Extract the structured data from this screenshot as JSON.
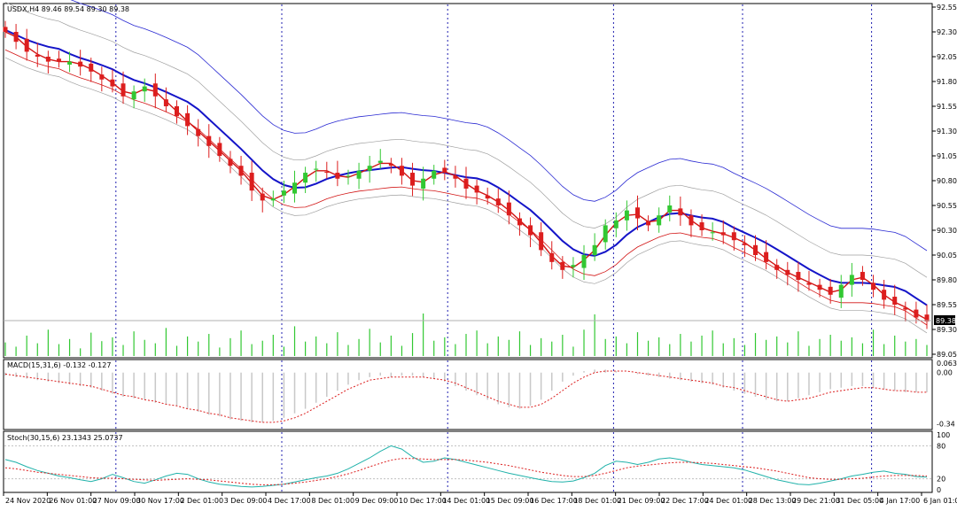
{
  "chart_data": [
    {
      "type": "candlestick",
      "header": "USDX,H4  89.46 89.54 89.30 89.38",
      "last_price": "89.38",
      "price_ticks": [
        "92.55",
        "92.30",
        "92.05",
        "91.80",
        "91.55",
        "91.30",
        "91.05",
        "90.80",
        "90.55",
        "90.30",
        "90.05",
        "89.80",
        "89.55",
        "89.30",
        "89.05"
      ],
      "ylim": [
        89.05,
        92.55
      ],
      "x_labels": [
        "24 Nov 2020",
        "26 Nov 01:00",
        "27 Nov 09:00",
        "30 Nov 17:00",
        "2 Dec 01:00",
        "3 Dec 09:00",
        "4 Dec 17:00",
        "8 Dec 01:00",
        "9 Dec 09:00",
        "10 Dec 17:00",
        "14 Dec 01:00",
        "15 Dec 09:00",
        "16 Dec 17:00",
        "18 Dec 01:00",
        "21 Dec 09:00",
        "22 Dec 17:00",
        "24 Dec 01:00",
        "28 Dec 13:00",
        "29 Dec 21:00",
        "31 Dec 05:00",
        "4 Jan 17:00",
        "6 Jan 01:00"
      ],
      "closes": [
        92.3,
        92.2,
        92.1,
        92.05,
        92.0,
        92.0,
        92.0,
        91.95,
        91.9,
        91.82,
        91.75,
        91.65,
        91.7,
        91.75,
        91.65,
        91.55,
        91.45,
        91.35,
        91.25,
        91.15,
        91.05,
        90.95,
        90.85,
        90.7,
        90.6,
        90.62,
        90.7,
        90.78,
        90.88,
        90.92,
        90.88,
        90.82,
        90.85,
        90.9,
        90.95,
        91.0,
        90.95,
        90.85,
        90.75,
        90.82,
        90.9,
        90.88,
        90.82,
        90.72,
        90.68,
        90.62,
        90.55,
        90.45,
        90.35,
        90.25,
        90.1,
        89.98,
        89.9,
        89.95,
        90.05,
        90.15,
        90.35,
        90.4,
        90.5,
        90.42,
        90.35,
        90.45,
        90.55,
        90.45,
        90.35,
        90.3,
        90.28,
        90.25,
        90.2,
        90.15,
        90.05,
        89.98,
        89.9,
        89.85,
        89.8,
        89.75,
        89.7,
        89.65,
        89.75,
        89.85,
        89.8,
        89.7,
        89.6,
        89.55,
        89.5,
        89.42,
        89.38
      ],
      "volumes": [
        0.32,
        0.22,
        0.48,
        0.3,
        0.62,
        0.28,
        0.4,
        0.18,
        0.55,
        0.35,
        0.44,
        0.26,
        0.58,
        0.38,
        0.3,
        0.66,
        0.24,
        0.46,
        0.34,
        0.52,
        0.2,
        0.42,
        0.6,
        0.28,
        0.36,
        0.5,
        0.22,
        0.7,
        0.34,
        0.46,
        0.3,
        0.56,
        0.26,
        0.4,
        0.64,
        0.32,
        0.48,
        0.24,
        0.54,
        1.0,
        0.36,
        0.44,
        0.28,
        0.52,
        0.6,
        0.3,
        0.46,
        0.38,
        0.58,
        0.26,
        0.42,
        0.34,
        0.5,
        0.22,
        0.62,
        0.98,
        0.4,
        0.46,
        0.3,
        0.56,
        0.36,
        0.44,
        0.28,
        0.52,
        0.34,
        0.48,
        0.6,
        0.3,
        0.42,
        0.26,
        0.54,
        0.38,
        0.46,
        0.32,
        0.58,
        0.24,
        0.4,
        0.5,
        0.36,
        0.44,
        0.3,
        0.62,
        0.28,
        0.48,
        0.34,
        0.4,
        0.26
      ],
      "colors": {
        "up": "#32c832",
        "down": "#dc1e1e",
        "ma_blue": "#1414c8",
        "envelope": "#2828d2",
        "fast_ma": "#d21414"
      }
    },
    {
      "type": "macd",
      "label": "MACD(15,31,6) -0.132 -0.127",
      "ticks": [
        "0.063",
        "0.00",
        "-0.34"
      ],
      "ylim": [
        -0.36,
        0.063
      ],
      "histogram": [
        -0.02,
        -0.03,
        -0.04,
        -0.05,
        -0.06,
        -0.07,
        -0.08,
        -0.09,
        -0.1,
        -0.12,
        -0.14,
        -0.16,
        -0.17,
        -0.18,
        -0.2,
        -0.21,
        -0.22,
        -0.24,
        -0.26,
        -0.28,
        -0.29,
        -0.31,
        -0.32,
        -0.33,
        -0.33,
        -0.32,
        -0.3,
        -0.27,
        -0.24,
        -0.2,
        -0.16,
        -0.12,
        -0.08,
        -0.05,
        -0.03,
        -0.02,
        -0.03,
        -0.02,
        -0.02,
        -0.03,
        -0.04,
        -0.06,
        -0.09,
        -0.12,
        -0.15,
        -0.18,
        -0.21,
        -0.23,
        -0.24,
        -0.22,
        -0.18,
        -0.12,
        -0.06,
        -0.02,
        0.01,
        0.02,
        0.02,
        0.01,
        0.0,
        -0.01,
        -0.02,
        -0.03,
        -0.04,
        -0.05,
        -0.06,
        -0.07,
        -0.08,
        -0.1,
        -0.12,
        -0.14,
        -0.16,
        -0.18,
        -0.19,
        -0.19,
        -0.17,
        -0.15,
        -0.13,
        -0.11,
        -0.1,
        -0.09,
        -0.09,
        -0.1,
        -0.11,
        -0.12,
        -0.13,
        -0.13,
        -0.13
      ],
      "signal": [
        -0.01,
        -0.02,
        -0.03,
        -0.04,
        -0.05,
        -0.06,
        -0.07,
        -0.08,
        -0.09,
        -0.11,
        -0.13,
        -0.15,
        -0.16,
        -0.18,
        -0.19,
        -0.21,
        -0.22,
        -0.24,
        -0.25,
        -0.27,
        -0.28,
        -0.3,
        -0.31,
        -0.32,
        -0.33,
        -0.33,
        -0.32,
        -0.3,
        -0.27,
        -0.23,
        -0.19,
        -0.15,
        -0.11,
        -0.08,
        -0.05,
        -0.04,
        -0.03,
        -0.03,
        -0.03,
        -0.03,
        -0.04,
        -0.05,
        -0.07,
        -0.1,
        -0.13,
        -0.16,
        -0.19,
        -0.21,
        -0.23,
        -0.23,
        -0.21,
        -0.17,
        -0.12,
        -0.07,
        -0.03,
        0.0,
        0.01,
        0.01,
        0.01,
        0.0,
        -0.01,
        -0.02,
        -0.03,
        -0.04,
        -0.05,
        -0.06,
        -0.07,
        -0.09,
        -0.1,
        -0.12,
        -0.14,
        -0.16,
        -0.18,
        -0.19,
        -0.18,
        -0.17,
        -0.15,
        -0.13,
        -0.12,
        -0.11,
        -0.1,
        -0.1,
        -0.11,
        -0.12,
        -0.12,
        -0.13,
        -0.13
      ]
    },
    {
      "type": "stochastic",
      "label": "Stoch(30,15,6) 23.1343 25.0737",
      "ticks": [
        "100",
        "80",
        "20",
        "0"
      ],
      "ylim": [
        0,
        100
      ],
      "main": [
        55,
        50,
        42,
        35,
        30,
        25,
        22,
        18,
        15,
        20,
        28,
        22,
        15,
        12,
        18,
        25,
        30,
        28,
        20,
        14,
        10,
        8,
        6,
        5,
        6,
        8,
        10,
        14,
        18,
        22,
        25,
        30,
        38,
        48,
        58,
        70,
        80,
        74,
        60,
        50,
        52,
        58,
        55,
        50,
        45,
        40,
        35,
        30,
        26,
        22,
        18,
        15,
        14,
        16,
        22,
        30,
        44,
        52,
        50,
        46,
        50,
        56,
        58,
        55,
        50,
        46,
        44,
        42,
        40,
        36,
        30,
        24,
        18,
        14,
        10,
        9,
        12,
        16,
        20,
        25,
        28,
        32,
        34,
        30,
        28,
        24,
        23
      ],
      "signal": [
        40,
        38,
        35,
        32,
        30,
        28,
        26,
        24,
        22,
        21,
        21,
        20,
        19,
        18,
        17,
        18,
        19,
        20,
        19,
        18,
        16,
        14,
        12,
        10,
        9,
        9,
        10,
        12,
        14,
        17,
        20,
        24,
        29,
        35,
        42,
        48,
        54,
        57,
        57,
        56,
        55,
        55,
        55,
        54,
        52,
        50,
        47,
        44,
        40,
        36,
        32,
        29,
        26,
        24,
        24,
        26,
        30,
        35,
        40,
        43,
        45,
        47,
        49,
        50,
        50,
        49,
        48,
        46,
        44,
        42,
        40,
        37,
        34,
        30,
        26,
        22,
        20,
        19,
        19,
        20,
        21,
        23,
        25,
        26,
        26,
        26,
        25
      ]
    }
  ]
}
